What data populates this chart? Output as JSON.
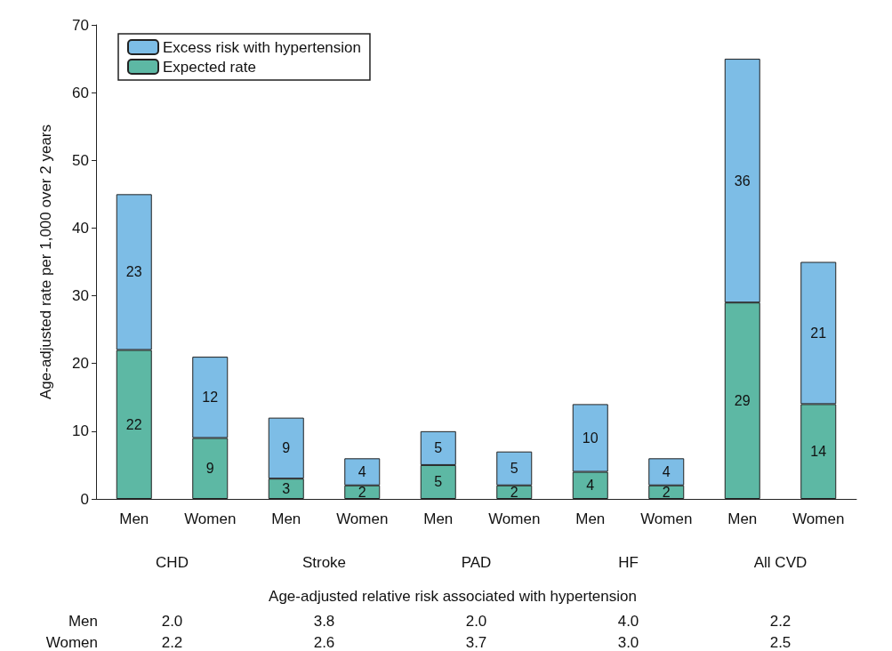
{
  "chart_data": {
    "type": "bar",
    "stacked": true,
    "ylabel": "Age-adjusted rate per 1,000 over 2 years",
    "categories": [
      "Men",
      "Women",
      "Men",
      "Women",
      "Men",
      "Women",
      "Men",
      "Women",
      "Men",
      "Women"
    ],
    "series": [
      {
        "name": "Expected rate",
        "color": "#5db8a4",
        "values": [
          22,
          9,
          3,
          2,
          5,
          2,
          4,
          2,
          29,
          14
        ]
      },
      {
        "name": "Excess risk with hypertension",
        "color": "#7dbde6",
        "values": [
          23,
          12,
          9,
          4,
          5,
          5,
          10,
          4,
          36,
          21
        ]
      }
    ],
    "ylim": [
      0,
      70
    ],
    "yticks": [
      0,
      10,
      20,
      30,
      40,
      50,
      60,
      70
    ],
    "grid": false,
    "legend": "top left",
    "data_labels": true,
    "annotations": [
      "CHD",
      "Stroke",
      "PAD",
      "HF",
      "All CVD",
      "Age-adjusted relative risk associated with hypertension",
      "Men",
      "2.0",
      "3.8",
      "2.0",
      "4.0",
      "2.2",
      "Women",
      "2.2",
      "2.6",
      "3.7",
      "3.0",
      "2.5"
    ]
  }
}
